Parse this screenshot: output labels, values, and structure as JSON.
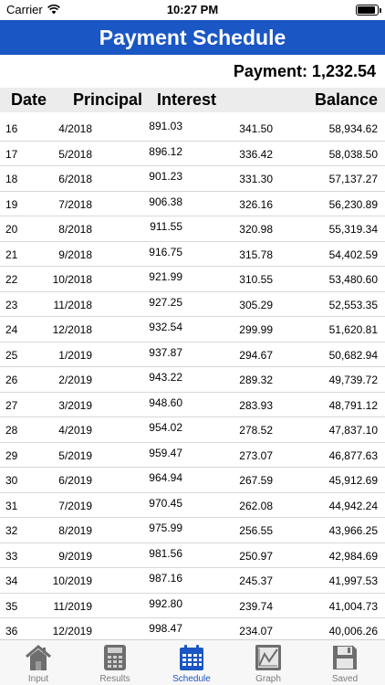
{
  "status": {
    "carrier": "Carrier",
    "time": "10:27 PM",
    "battery_level": 0.92
  },
  "title": "Payment Schedule",
  "payment": "Payment: 1,232.54",
  "columns": {
    "date": "Date",
    "principal": "Principal",
    "interest": "Interest",
    "balance": "Balance"
  },
  "rows": [
    [
      "16",
      "4/2018",
      "891.03",
      "341.50",
      "58,934.62"
    ],
    [
      "17",
      "5/2018",
      "896.12",
      "336.42",
      "58,038.50"
    ],
    [
      "18",
      "6/2018",
      "901.23",
      "331.30",
      "57,137.27"
    ],
    [
      "19",
      "7/2018",
      "906.38",
      "326.16",
      "56,230.89"
    ],
    [
      "20",
      "8/2018",
      "911.55",
      "320.98",
      "55,319.34"
    ],
    [
      "21",
      "9/2018",
      "916.75",
      "315.78",
      "54,402.59"
    ],
    [
      "22",
      "10/2018",
      "921.99",
      "310.55",
      "53,480.60"
    ],
    [
      "23",
      "11/2018",
      "927.25",
      "305.29",
      "52,553.35"
    ],
    [
      "24",
      "12/2018",
      "932.54",
      "299.99",
      "51,620.81"
    ],
    [
      "25",
      "1/2019",
      "937.87",
      "294.67",
      "50,682.94"
    ],
    [
      "26",
      "2/2019",
      "943.22",
      "289.32",
      "49,739.72"
    ],
    [
      "27",
      "3/2019",
      "948.60",
      "283.93",
      "48,791.12"
    ],
    [
      "28",
      "4/2019",
      "954.02",
      "278.52",
      "47,837.10"
    ],
    [
      "29",
      "5/2019",
      "959.47",
      "273.07",
      "46,877.63"
    ],
    [
      "30",
      "6/2019",
      "964.94",
      "267.59",
      "45,912.69"
    ],
    [
      "31",
      "7/2019",
      "970.45",
      "262.08",
      "44,942.24"
    ],
    [
      "32",
      "8/2019",
      "975.99",
      "256.55",
      "43,966.25"
    ],
    [
      "33",
      "9/2019",
      "981.56",
      "250.97",
      "42,984.69"
    ],
    [
      "34",
      "10/2019",
      "987.16",
      "245.37",
      "41,997.53"
    ],
    [
      "35",
      "11/2019",
      "992.80",
      "239.74",
      "41,004.73"
    ],
    [
      "36",
      "12/2019",
      "998.47",
      "234.07",
      "40,006.26"
    ]
  ],
  "tabs": [
    {
      "label": "Input",
      "icon": "house-icon"
    },
    {
      "label": "Results",
      "icon": "calculator-icon"
    },
    {
      "label": "Schedule",
      "icon": "calendar-icon"
    },
    {
      "label": "Graph",
      "icon": "graph-icon"
    },
    {
      "label": "Saved",
      "icon": "floppy-disk-icon"
    }
  ],
  "colors": {
    "accent": "#1a56c4",
    "inactive_icon": "#6e6e6e",
    "header_bg": "#ececec"
  }
}
